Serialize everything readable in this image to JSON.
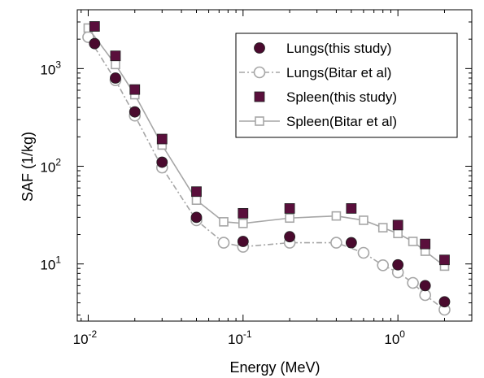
{
  "chart_data": {
    "type": "scatter",
    "title": "",
    "xlabel": "Energy (MeV)",
    "ylabel": "SAF (1/kg)",
    "x_scale": "log",
    "y_scale": "log",
    "xlim": [
      0.0085,
      3.0
    ],
    "ylim": [
      2.6,
      4000
    ],
    "x_ticks": [
      {
        "base": "10",
        "exp": "-2",
        "value": 0.01
      },
      {
        "base": "10",
        "exp": "-1",
        "value": 0.1
      },
      {
        "base": "10",
        "exp": "0",
        "value": 1
      }
    ],
    "y_ticks": [
      {
        "base": "10",
        "exp": "1",
        "value": 10
      },
      {
        "base": "10",
        "exp": "2",
        "value": 100
      },
      {
        "base": "10",
        "exp": "3",
        "value": 1000
      }
    ],
    "grid": false,
    "legend_position": "top-right",
    "colors": {
      "lungs_this": "#4a0a2e",
      "lungs_bitar": "#a6a6a6",
      "spleen_this": "#5a0f3c",
      "spleen_bitar": "#a6a6a6"
    },
    "series": [
      {
        "name": "Lungs(this study)",
        "marker": "circle-filled",
        "line": "none",
        "x": [
          0.011,
          0.015,
          0.02,
          0.03,
          0.05,
          0.1,
          0.2,
          0.5,
          1.0,
          1.5,
          2.0
        ],
        "y": [
          1800,
          800,
          360,
          110,
          30,
          17,
          19,
          16.5,
          9.8,
          6.0,
          4.1
        ]
      },
      {
        "name": "Lungs(Bitar et al)",
        "marker": "circle-open",
        "line": "dash-dot",
        "x": [
          0.01,
          0.015,
          0.02,
          0.03,
          0.05,
          0.075,
          0.1,
          0.2,
          0.4,
          0.6,
          0.8,
          1.0,
          1.25,
          1.5,
          2.0
        ],
        "y": [
          2100,
          760,
          330,
          97,
          28,
          16.5,
          15,
          16.5,
          16.5,
          13,
          9.7,
          8.2,
          6.4,
          4.8,
          3.4
        ]
      },
      {
        "name": "Spleen(this study)",
        "marker": "square-filled",
        "line": "none",
        "x": [
          0.011,
          0.015,
          0.02,
          0.03,
          0.05,
          0.1,
          0.2,
          0.5,
          1.0,
          1.5,
          2.0
        ],
        "y": [
          2700,
          1350,
          610,
          190,
          55,
          33,
          37,
          37,
          25,
          16,
          11
        ]
      },
      {
        "name": "Spleen(Bitar et al)",
        "marker": "square-open",
        "line": "solid",
        "x": [
          0.01,
          0.015,
          0.02,
          0.03,
          0.05,
          0.075,
          0.1,
          0.2,
          0.4,
          0.6,
          0.8,
          1.0,
          1.25,
          1.5,
          2.0
        ],
        "y": [
          2600,
          1100,
          540,
          165,
          45,
          27,
          26,
          29.5,
          31,
          28,
          23.5,
          20.5,
          17,
          13.5,
          9.5
        ]
      }
    ]
  }
}
